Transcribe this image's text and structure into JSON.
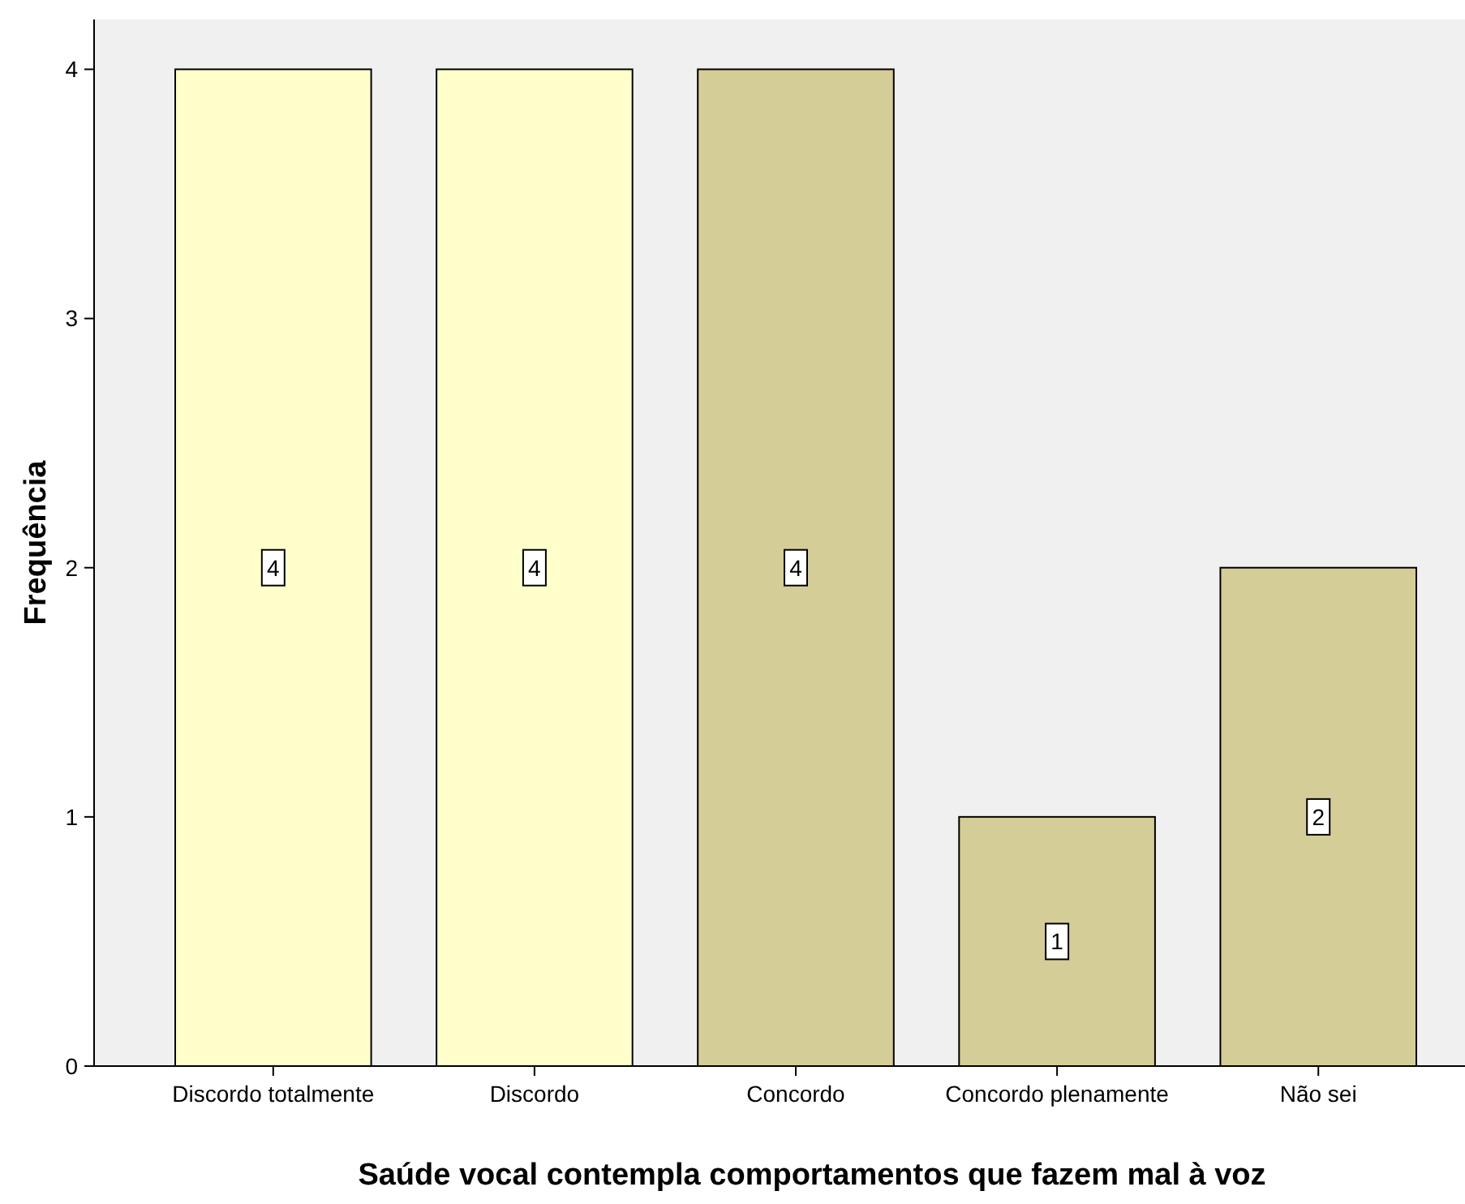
{
  "chart_data": {
    "type": "bar",
    "xlabel": "Saúde vocal contempla comportamentos que fazem mal à voz",
    "ylabel": "Frequência",
    "categories": [
      "Discordo totalmente",
      "Discordo",
      "Concordo",
      "Concordo plenamente",
      "Não sei"
    ],
    "values": [
      4,
      4,
      4,
      1,
      2
    ],
    "colors": [
      "#ffffcc",
      "#ffffcc",
      "#d4cd98",
      "#d4cd98",
      "#d4cd98"
    ],
    "ylim": [
      0,
      4.2
    ],
    "yticks": [
      0,
      1,
      2,
      3,
      4
    ],
    "grid": false,
    "data_labels": true
  }
}
